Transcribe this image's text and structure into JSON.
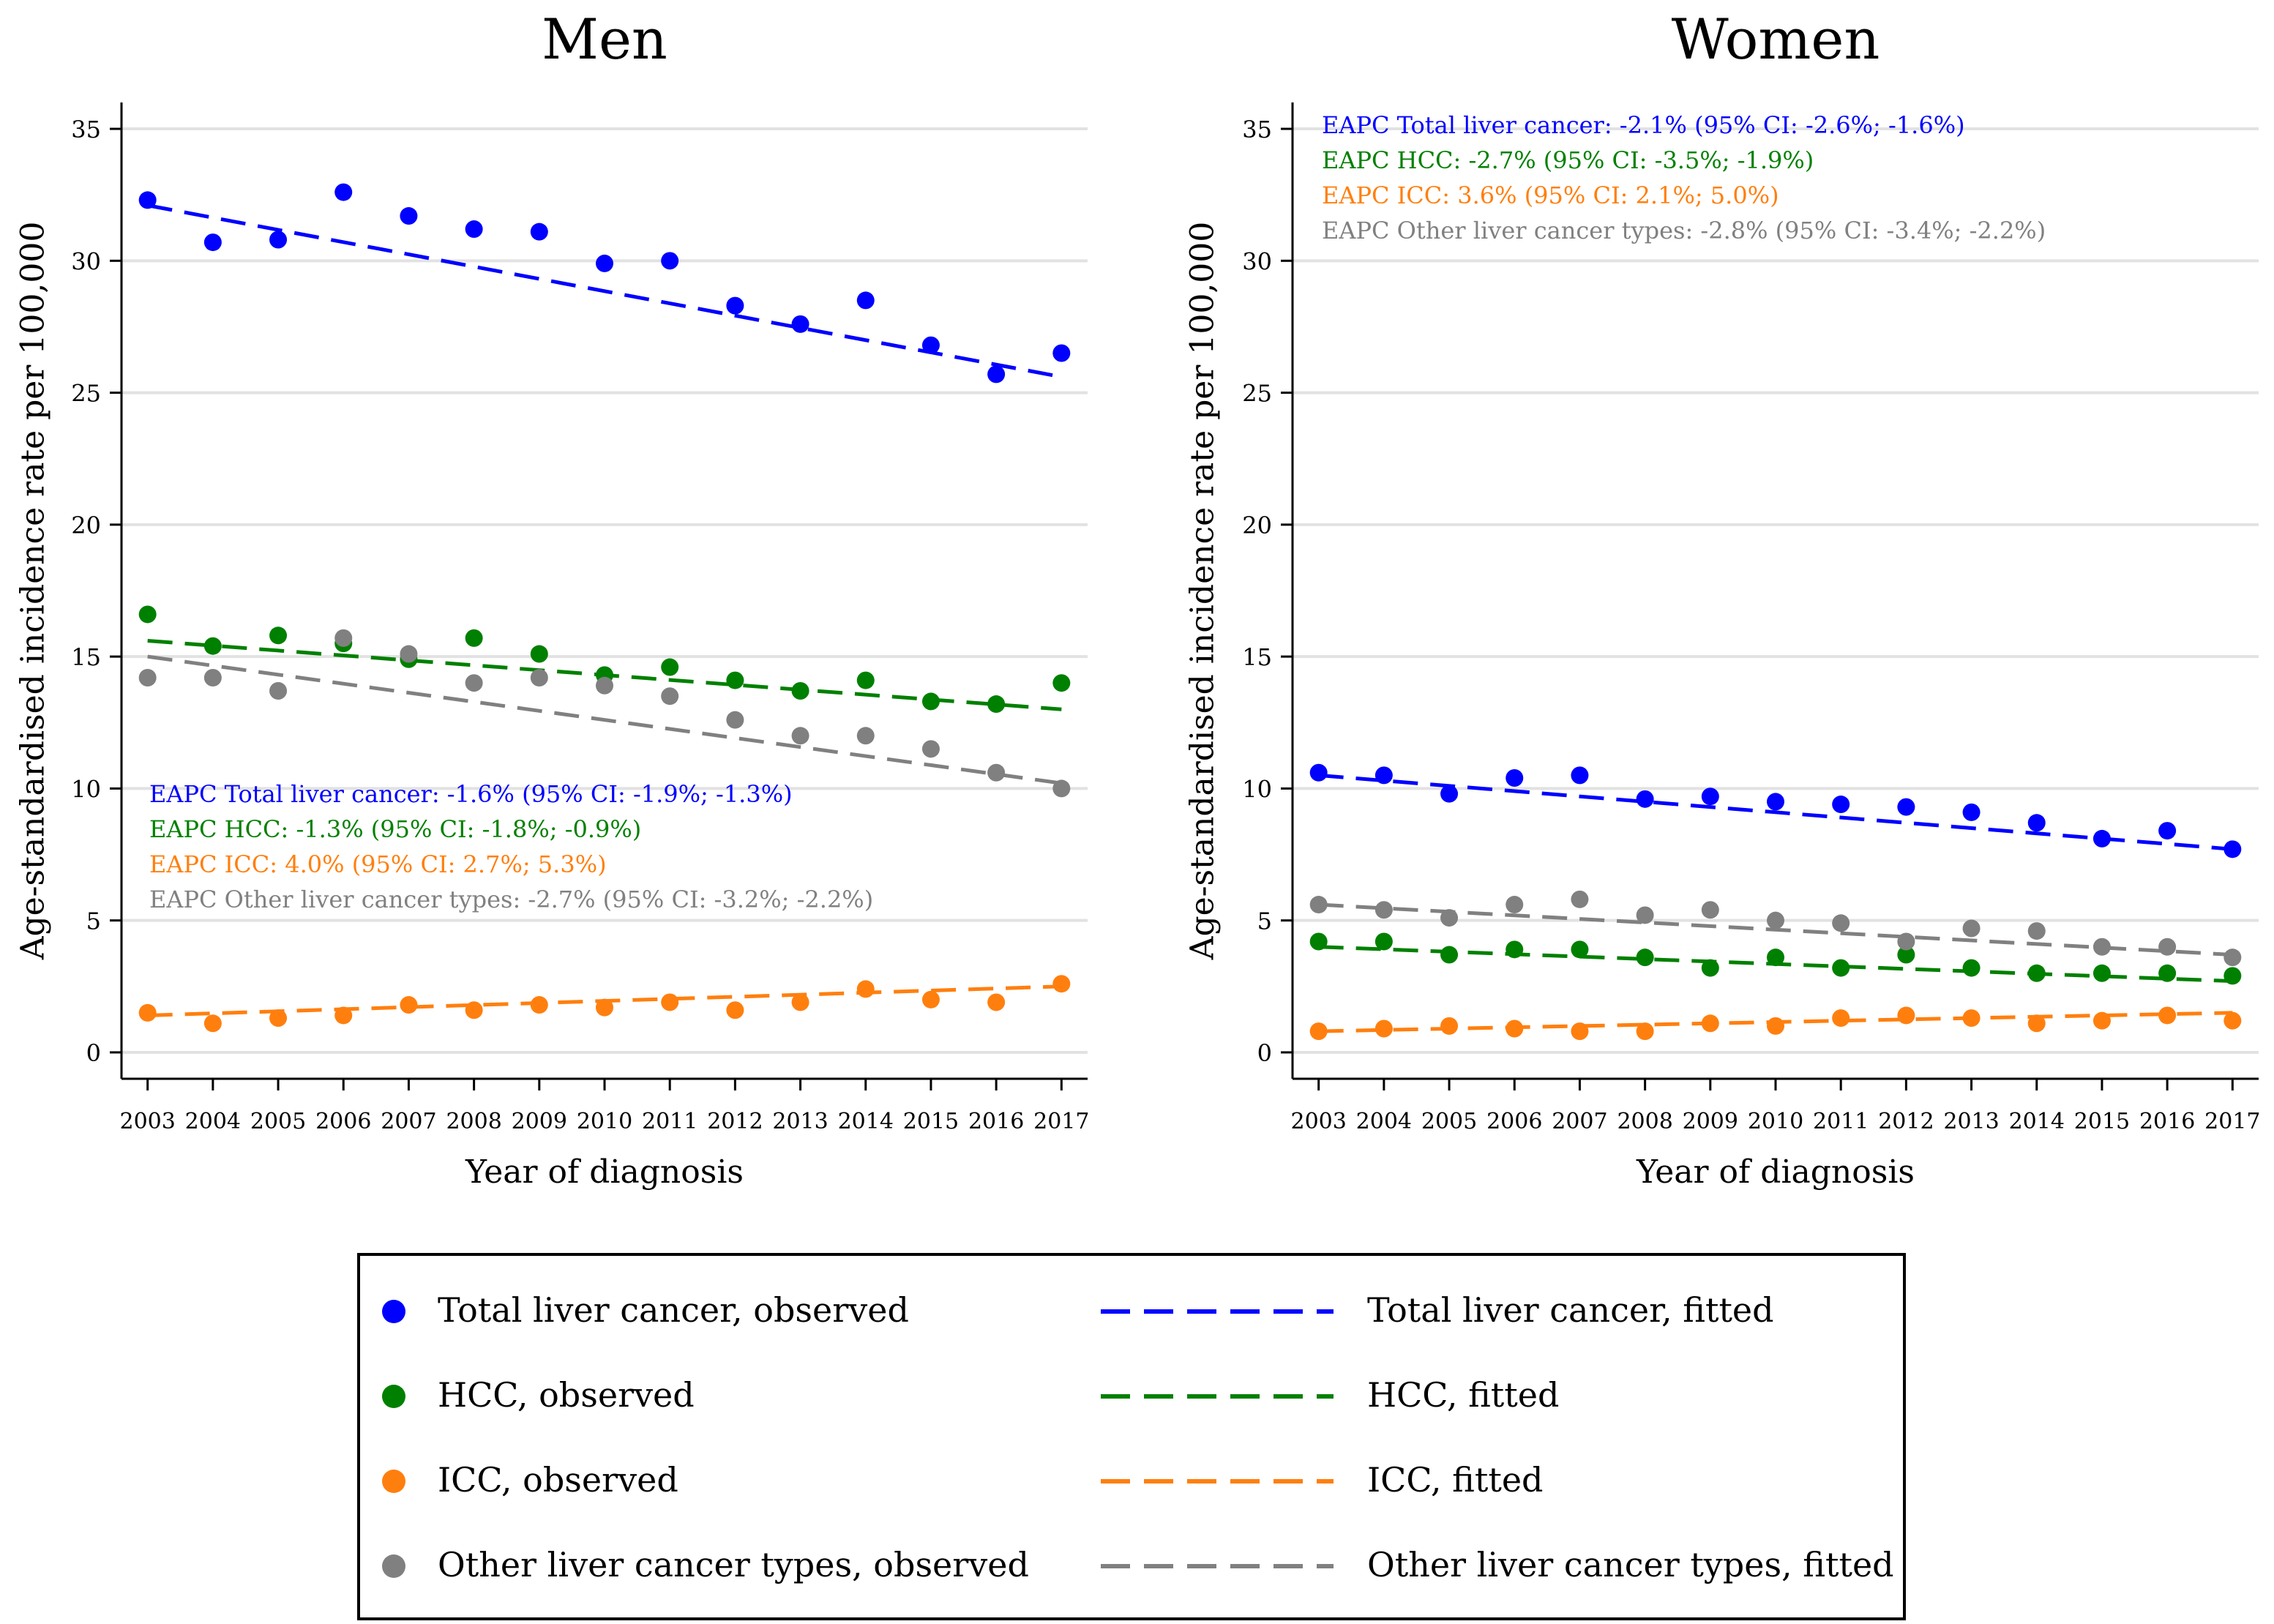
{
  "legend": {
    "items": [
      {
        "label": "Total liver cancer, observed",
        "kind": "observed",
        "color": "#0000ff"
      },
      {
        "label": "Total liver cancer, fitted",
        "kind": "fitted",
        "color": "#0000ff"
      },
      {
        "label": "HCC, observed",
        "kind": "observed",
        "color": "#008000"
      },
      {
        "label": "HCC, fitted",
        "kind": "fitted",
        "color": "#008000"
      },
      {
        "label": "ICC, observed",
        "kind": "observed",
        "color": "#ff7f0e"
      },
      {
        "label": "ICC, fitted",
        "kind": "fitted",
        "color": "#ff7f0e"
      },
      {
        "label": "Other liver cancer types, observed",
        "kind": "observed",
        "color": "#808080"
      },
      {
        "label": "Other liver cancer types, fitted",
        "kind": "fitted",
        "color": "#808080"
      }
    ]
  },
  "chart_data": [
    {
      "type": "scatter",
      "title": "Men",
      "xlabel": "Year of diagnosis",
      "ylabel": "Age-standardised incidence rate per 100,000",
      "x": [
        2003,
        2004,
        2005,
        2006,
        2007,
        2008,
        2009,
        2010,
        2011,
        2012,
        2013,
        2014,
        2015,
        2016,
        2017
      ],
      "xlim": [
        2002.6,
        2017.4
      ],
      "ylim": [
        -1,
        36
      ],
      "yticks": [
        0,
        5,
        10,
        15,
        20,
        25,
        30,
        35
      ],
      "grid": true,
      "annotations_position": "lower-left",
      "series": [
        {
          "name": "Total liver cancer",
          "color": "#0000ff",
          "values": [
            32.3,
            30.7,
            30.8,
            32.6,
            31.7,
            31.2,
            31.1,
            29.9,
            30.0,
            28.3,
            27.6,
            28.5,
            26.8,
            25.7,
            26.5
          ],
          "fitted": [
            32.1,
            25.6
          ],
          "annotation": "EAPC Total liver cancer: -1.6% (95% CI: -1.9%; -1.3%)"
        },
        {
          "name": "HCC",
          "color": "#008000",
          "values": [
            16.6,
            15.4,
            15.8,
            15.5,
            14.9,
            15.7,
            15.1,
            14.3,
            14.6,
            14.1,
            13.7,
            14.1,
            13.3,
            13.2,
            14.0
          ],
          "fitted": [
            15.6,
            13.0
          ],
          "annotation": "EAPC HCC: -1.3% (95% CI: -1.8%; -0.9%)"
        },
        {
          "name": "ICC",
          "color": "#ff7f0e",
          "values": [
            1.5,
            1.1,
            1.3,
            1.4,
            1.8,
            1.6,
            1.8,
            1.7,
            1.9,
            1.6,
            1.9,
            2.4,
            2.0,
            1.9,
            2.6
          ],
          "fitted": [
            1.4,
            2.5
          ],
          "annotation": "EAPC ICC: 4.0% (95% CI: 2.7%; 5.3%)"
        },
        {
          "name": "Other liver cancer types",
          "color": "#808080",
          "values": [
            14.2,
            14.2,
            13.7,
            15.7,
            15.1,
            14.0,
            14.2,
            13.9,
            13.5,
            12.6,
            12.0,
            12.0,
            11.5,
            10.6,
            10.0
          ],
          "fitted": [
            15.0,
            10.2
          ],
          "annotation": "EAPC Other liver cancer types: -2.7% (95% CI: -3.2%; -2.2%)"
        }
      ]
    },
    {
      "type": "scatter",
      "title": "Women",
      "xlabel": "Year of diagnosis",
      "ylabel": "Age-standardised incidence rate per 100,000",
      "x": [
        2003,
        2004,
        2005,
        2006,
        2007,
        2008,
        2009,
        2010,
        2011,
        2012,
        2013,
        2014,
        2015,
        2016,
        2017
      ],
      "xlim": [
        2002.6,
        2017.4
      ],
      "ylim": [
        -1,
        36
      ],
      "yticks": [
        0,
        5,
        10,
        15,
        20,
        25,
        30,
        35
      ],
      "grid": true,
      "annotations_position": "top-left",
      "series": [
        {
          "name": "Total liver cancer",
          "color": "#0000ff",
          "values": [
            10.6,
            10.5,
            9.8,
            10.4,
            10.5,
            9.6,
            9.7,
            9.5,
            9.4,
            9.3,
            9.1,
            8.7,
            8.1,
            8.4,
            7.7
          ],
          "fitted": [
            10.5,
            7.7
          ],
          "annotation": "EAPC Total liver cancer: -2.1% (95% CI: -2.6%; -1.6%)"
        },
        {
          "name": "HCC",
          "color": "#008000",
          "values": [
            4.2,
            4.2,
            3.7,
            3.9,
            3.9,
            3.6,
            3.2,
            3.6,
            3.2,
            3.7,
            3.2,
            3.0,
            3.0,
            3.0,
            2.9
          ],
          "fitted": [
            4.0,
            2.7
          ],
          "annotation": "EAPC HCC: -2.7% (95% CI: -3.5%; -1.9%)"
        },
        {
          "name": "ICC",
          "color": "#ff7f0e",
          "values": [
            0.8,
            0.9,
            1.0,
            0.9,
            0.8,
            0.8,
            1.1,
            1.0,
            1.3,
            1.4,
            1.3,
            1.1,
            1.2,
            1.4,
            1.2
          ],
          "fitted": [
            0.8,
            1.5
          ],
          "annotation": "EAPC ICC: 3.6% (95% CI: 2.1%; 5.0%)"
        },
        {
          "name": "Other liver cancer types",
          "color": "#808080",
          "values": [
            5.6,
            5.4,
            5.1,
            5.6,
            5.8,
            5.2,
            5.4,
            5.0,
            4.9,
            4.2,
            4.7,
            4.6,
            4.0,
            4.0,
            3.6
          ],
          "fitted": [
            5.6,
            3.7
          ],
          "annotation": "EAPC Other liver cancer types: -2.8% (95% CI: -3.4%; -2.2%)"
        }
      ]
    }
  ]
}
